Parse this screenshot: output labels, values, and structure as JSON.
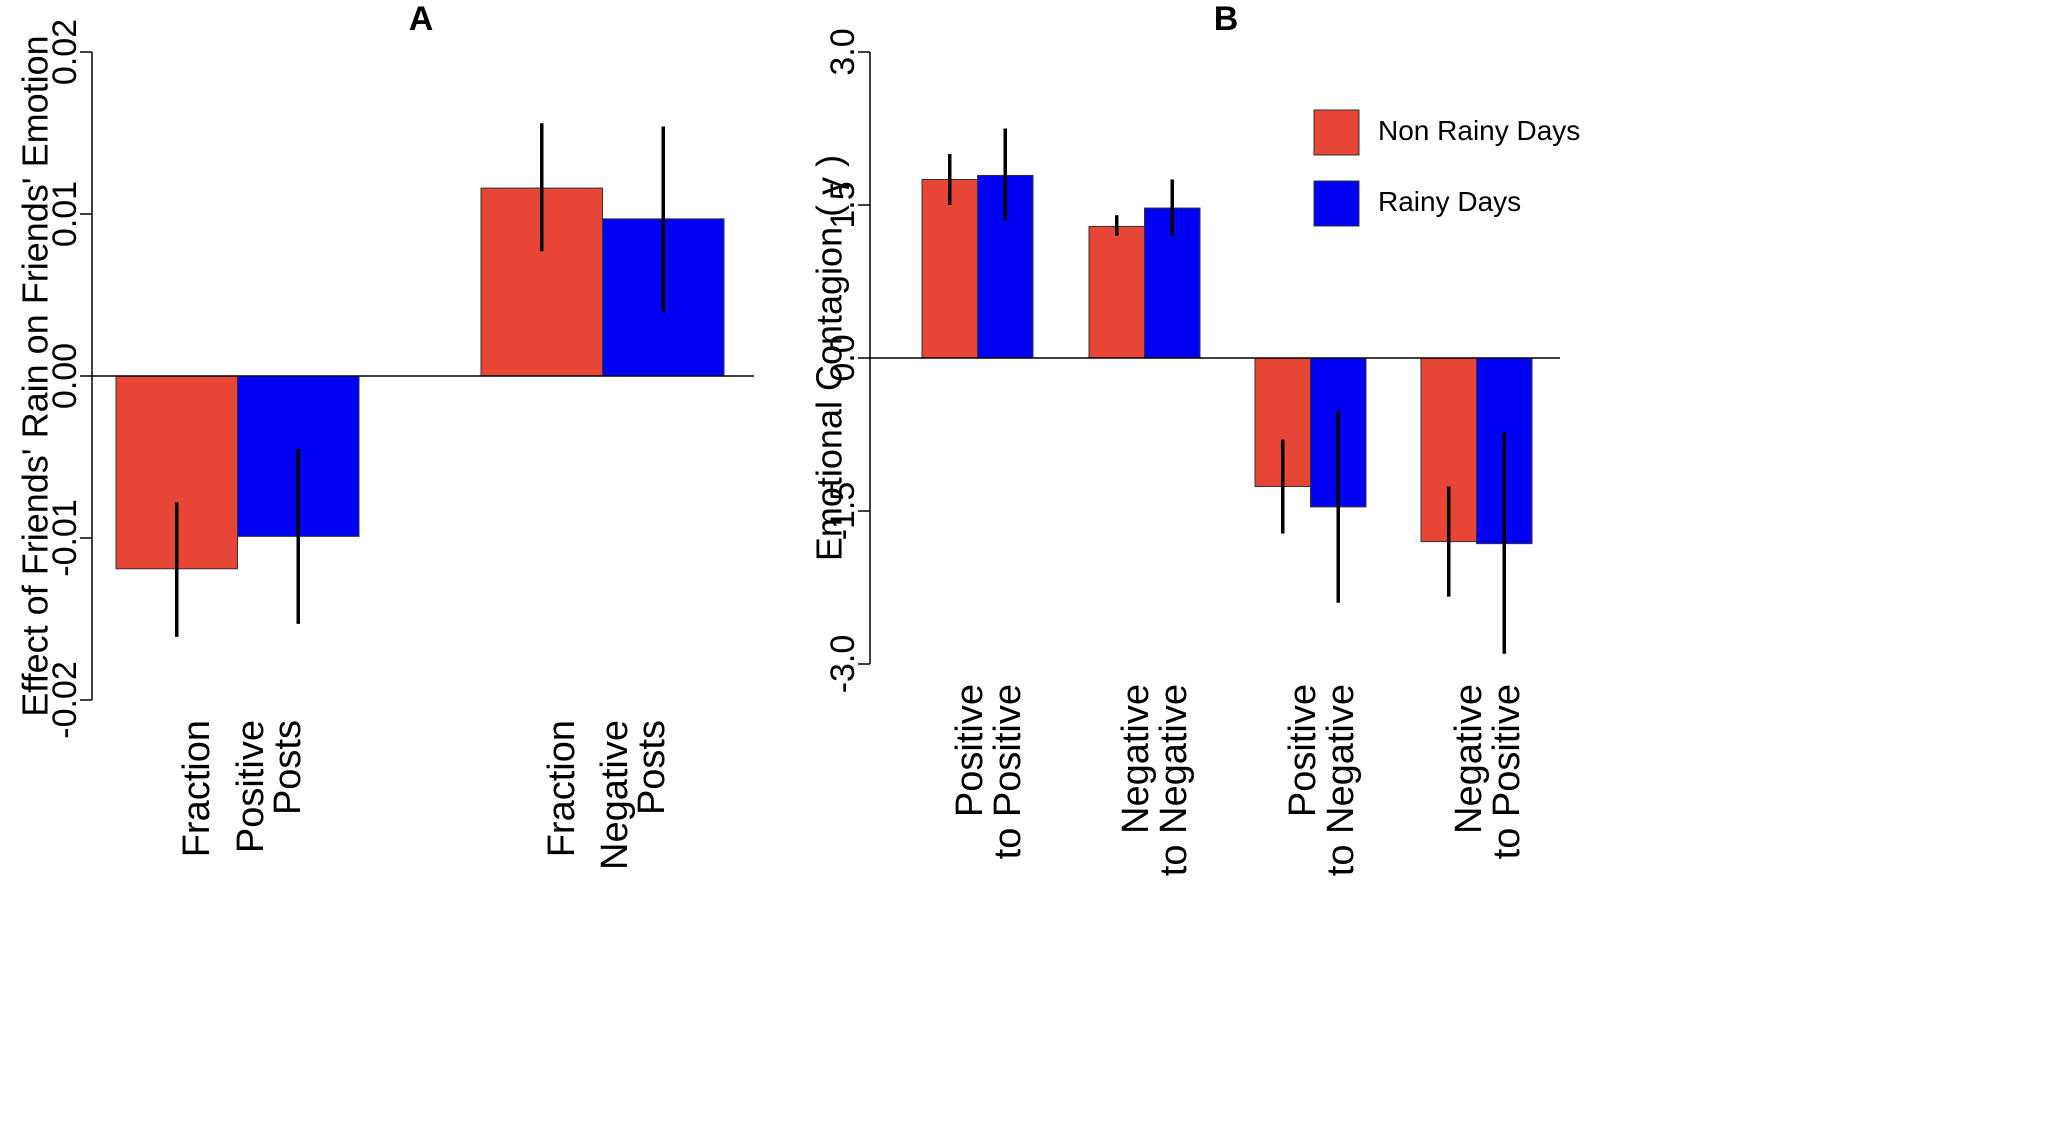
{
  "chart_data": [
    {
      "type": "bar",
      "title": "A",
      "xlabel": "",
      "ylabel": "Effect of Friends' Rain on Friends' Emotion",
      "ylim": [
        -0.02,
        0.02
      ],
      "yticks": [
        "-0.02",
        "-0.01",
        "0.00",
        "0.01",
        "0.02"
      ],
      "grid": false,
      "categories": [
        [
          "Fraction",
          "Positive",
          "Posts"
        ],
        [
          "Fraction",
          "Negative",
          "Posts"
        ]
      ],
      "series": [
        {
          "name": "Non Rainy Days",
          "color": "#e74535",
          "values": [
            -0.0119,
            0.0116
          ],
          "error_low": [
            -0.0161,
            0.0077
          ],
          "error_high": [
            -0.0078,
            0.0156
          ]
        },
        {
          "name": "Rainy Days",
          "color": "#0000f5",
          "values": [
            -0.0099,
            0.0097
          ],
          "error_low": [
            -0.0153,
            0.004
          ],
          "error_high": [
            -0.0045,
            0.0154
          ]
        }
      ]
    },
    {
      "type": "bar",
      "title": "B",
      "xlabel": "",
      "ylabel": "Emotional Contagion ( γ )",
      "ylim": [
        -3.0,
        3.0
      ],
      "yticks": [
        "-3.0",
        "-1.5",
        "0.0",
        "1.5",
        "3.0"
      ],
      "grid": false,
      "legend_position": "top-right",
      "legend": [
        "Non Rainy Days",
        "Rainy Days"
      ],
      "categories": [
        [
          "Positive",
          "to Positive"
        ],
        [
          "Negative",
          "to Negative"
        ],
        [
          "Positive",
          "to Negative"
        ],
        [
          "Negative",
          "to Positive"
        ]
      ],
      "series": [
        {
          "name": "Non Rainy Days",
          "color": "#e74535",
          "values": [
            1.75,
            1.29,
            -1.26,
            -1.8
          ],
          "error_low": [
            1.5,
            1.2,
            -1.72,
            -2.34
          ],
          "error_high": [
            2.0,
            1.4,
            -0.8,
            -1.26
          ]
        },
        {
          "name": "Rainy Days",
          "color": "#0000f5",
          "values": [
            1.79,
            1.47,
            -1.46,
            -1.82
          ],
          "error_low": [
            1.35,
            1.2,
            -2.4,
            -2.9
          ],
          "error_high": [
            2.25,
            1.75,
            -0.52,
            -0.73
          ]
        }
      ]
    }
  ]
}
